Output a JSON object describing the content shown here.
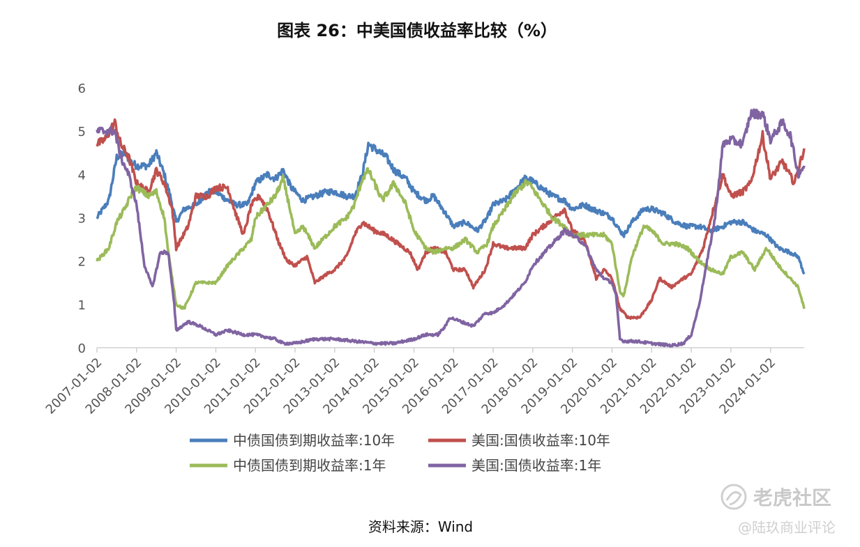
{
  "title": "图表 26：中美国债收益率比较（%）",
  "source": "资料来源：Wind",
  "watermark": {
    "main": "老虎社区",
    "sub": "@陆玖商业评论"
  },
  "colors": {
    "cn10": "#4a7ebb",
    "us10": "#c0504d",
    "cn1": "#9bbb59",
    "us1": "#8064a2"
  },
  "chart_data": {
    "type": "line",
    "title": "图表 26：中美国债收益率比较（%）",
    "ylim": [
      0,
      6
    ],
    "yticks": [
      "0",
      "1",
      "2",
      "3",
      "4",
      "5",
      "6"
    ],
    "xlim": [
      2007.0,
      2024.85
    ],
    "xticks": [
      "2007-01-02",
      "2008-01-02",
      "2009-01-02",
      "2010-01-02",
      "2011-01-02",
      "2012-01-02",
      "2013-01-02",
      "2014-01-02",
      "2015-01-02",
      "2016-01-02",
      "2017-01-02",
      "2018-01-02",
      "2019-01-02",
      "2020-01-02",
      "2021-01-02",
      "2022-01-02",
      "2023-01-02",
      "2024-01-02"
    ],
    "grid": false,
    "legend_position": "bottom",
    "series": [
      {
        "key": "cn10",
        "name": "中债国债到期收益率:10年",
        "x": [
          2007.0,
          2007.3,
          2007.5,
          2007.7,
          2007.85,
          2008.0,
          2008.3,
          2008.5,
          2008.7,
          2008.85,
          2009.0,
          2009.2,
          2009.5,
          2009.8,
          2010.0,
          2010.3,
          2010.5,
          2010.8,
          2011.0,
          2011.3,
          2011.5,
          2011.7,
          2011.9,
          2012.2,
          2012.5,
          2012.8,
          2013.0,
          2013.3,
          2013.5,
          2013.7,
          2013.85,
          2014.0,
          2014.3,
          2014.5,
          2014.8,
          2015.0,
          2015.3,
          2015.5,
          2015.8,
          2016.0,
          2016.3,
          2016.6,
          2016.85,
          2017.0,
          2017.3,
          2017.5,
          2017.8,
          2017.9,
          2018.2,
          2018.5,
          2018.8,
          2019.0,
          2019.3,
          2019.5,
          2019.8,
          2020.0,
          2020.2,
          2020.3,
          2020.5,
          2020.8,
          2021.0,
          2021.3,
          2021.6,
          2021.9,
          2022.2,
          2022.5,
          2022.8,
          2023.0,
          2023.3,
          2023.6,
          2023.9,
          2024.2,
          2024.5,
          2024.7,
          2024.85
        ],
        "y": [
          3.0,
          3.4,
          4.4,
          4.5,
          4.3,
          4.2,
          4.2,
          4.5,
          4.0,
          3.5,
          2.9,
          3.2,
          3.3,
          3.6,
          3.6,
          3.4,
          3.3,
          3.3,
          3.8,
          4.0,
          3.9,
          4.1,
          3.7,
          3.4,
          3.5,
          3.6,
          3.6,
          3.5,
          3.5,
          4.0,
          4.7,
          4.6,
          4.4,
          4.1,
          3.9,
          3.6,
          3.4,
          3.5,
          3.1,
          2.8,
          2.9,
          2.7,
          3.0,
          3.3,
          3.4,
          3.6,
          3.9,
          3.9,
          3.7,
          3.5,
          3.4,
          3.2,
          3.3,
          3.2,
          3.1,
          3.0,
          2.7,
          2.6,
          2.9,
          3.2,
          3.2,
          3.1,
          2.9,
          2.8,
          2.8,
          2.7,
          2.8,
          2.9,
          2.9,
          2.7,
          2.6,
          2.3,
          2.2,
          2.1,
          1.7
        ]
      },
      {
        "key": "us10",
        "name": "美国:国债收益率:10年",
        "x": [
          2007.0,
          2007.2,
          2007.45,
          2007.6,
          2007.8,
          2008.0,
          2008.3,
          2008.5,
          2008.7,
          2008.9,
          2009.0,
          2009.3,
          2009.5,
          2009.8,
          2010.0,
          2010.3,
          2010.5,
          2010.7,
          2010.9,
          2011.1,
          2011.3,
          2011.6,
          2011.8,
          2012.0,
          2012.3,
          2012.5,
          2012.8,
          2013.0,
          2013.3,
          2013.5,
          2013.7,
          2013.85,
          2014.0,
          2014.3,
          2014.6,
          2014.9,
          2015.1,
          2015.3,
          2015.5,
          2015.8,
          2016.0,
          2016.3,
          2016.5,
          2016.8,
          2017.0,
          2017.3,
          2017.6,
          2017.8,
          2018.0,
          2018.4,
          2018.8,
          2019.0,
          2019.3,
          2019.6,
          2019.8,
          2020.0,
          2020.2,
          2020.4,
          2020.7,
          2021.0,
          2021.2,
          2021.5,
          2021.8,
          2022.0,
          2022.3,
          2022.5,
          2022.8,
          2023.0,
          2023.3,
          2023.5,
          2023.8,
          2024.0,
          2024.3,
          2024.6,
          2024.85
        ],
        "y": [
          4.7,
          4.8,
          5.2,
          4.7,
          4.4,
          3.8,
          3.6,
          4.1,
          3.8,
          3.2,
          2.3,
          2.8,
          3.5,
          3.5,
          3.7,
          3.7,
          3.1,
          2.6,
          3.3,
          3.5,
          3.2,
          2.4,
          2.0,
          1.9,
          2.1,
          1.5,
          1.7,
          1.8,
          2.1,
          2.6,
          2.9,
          2.8,
          2.7,
          2.6,
          2.4,
          2.2,
          1.8,
          2.2,
          2.3,
          2.2,
          1.8,
          1.8,
          1.4,
          1.8,
          2.4,
          2.3,
          2.3,
          2.3,
          2.6,
          2.9,
          3.2,
          2.7,
          2.5,
          1.6,
          1.8,
          1.6,
          0.9,
          0.7,
          0.7,
          1.1,
          1.6,
          1.4,
          1.6,
          1.7,
          2.3,
          3.0,
          4.0,
          3.5,
          3.6,
          3.8,
          4.9,
          3.9,
          4.3,
          3.8,
          4.6
        ]
      },
      {
        "key": "cn1",
        "name": "中债国债到期收益率:1年",
        "x": [
          2007.0,
          2007.3,
          2007.5,
          2007.7,
          2007.85,
          2008.0,
          2008.3,
          2008.5,
          2008.7,
          2008.8,
          2009.0,
          2009.2,
          2009.5,
          2009.8,
          2010.0,
          2010.3,
          2010.6,
          2010.9,
          2011.0,
          2011.3,
          2011.5,
          2011.7,
          2011.85,
          2012.0,
          2012.2,
          2012.5,
          2012.8,
          2013.0,
          2013.3,
          2013.5,
          2013.7,
          2013.85,
          2014.0,
          2014.2,
          2014.5,
          2014.8,
          2015.0,
          2015.3,
          2015.5,
          2015.8,
          2016.0,
          2016.3,
          2016.6,
          2016.85,
          2017.0,
          2017.3,
          2017.5,
          2017.8,
          2017.9,
          2018.2,
          2018.5,
          2018.8,
          2019.0,
          2019.3,
          2019.5,
          2019.8,
          2020.0,
          2020.2,
          2020.3,
          2020.5,
          2020.8,
          2021.0,
          2021.3,
          2021.6,
          2021.9,
          2022.2,
          2022.5,
          2022.8,
          2023.0,
          2023.3,
          2023.6,
          2023.9,
          2024.2,
          2024.5,
          2024.7,
          2024.85
        ],
        "y": [
          2.0,
          2.3,
          2.9,
          3.2,
          3.5,
          3.7,
          3.5,
          3.6,
          3.0,
          2.2,
          1.0,
          0.9,
          1.5,
          1.5,
          1.5,
          1.9,
          2.2,
          2.5,
          3.0,
          3.3,
          3.5,
          3.9,
          3.3,
          2.6,
          2.8,
          2.3,
          2.6,
          2.8,
          3.0,
          3.3,
          3.9,
          4.1,
          3.8,
          3.4,
          3.8,
          3.3,
          2.7,
          2.3,
          2.2,
          2.3,
          2.3,
          2.5,
          2.2,
          2.4,
          2.8,
          3.2,
          3.5,
          3.8,
          3.8,
          3.4,
          3.0,
          2.8,
          2.6,
          2.6,
          2.6,
          2.6,
          2.4,
          1.3,
          1.2,
          2.1,
          2.8,
          2.7,
          2.4,
          2.4,
          2.3,
          2.0,
          1.8,
          1.7,
          2.1,
          2.2,
          1.8,
          2.3,
          1.9,
          1.6,
          1.4,
          0.9
        ]
      },
      {
        "key": "us1",
        "name": "美国:国债收益率:1年",
        "x": [
          2007.0,
          2007.2,
          2007.45,
          2007.6,
          2007.8,
          2008.0,
          2008.2,
          2008.4,
          2008.6,
          2008.8,
          2008.95,
          2009.0,
          2009.3,
          2009.6,
          2010.0,
          2010.3,
          2010.7,
          2011.0,
          2011.5,
          2011.7,
          2012.0,
          2012.5,
          2013.0,
          2013.5,
          2014.0,
          2014.5,
          2015.0,
          2015.3,
          2015.6,
          2015.8,
          2015.9,
          2016.2,
          2016.5,
          2016.8,
          2017.0,
          2017.3,
          2017.6,
          2017.8,
          2018.0,
          2018.4,
          2018.8,
          2019.0,
          2019.3,
          2019.6,
          2019.8,
          2020.0,
          2020.1,
          2020.2,
          2020.3,
          2020.6,
          2021.0,
          2021.5,
          2021.8,
          2022.0,
          2022.2,
          2022.4,
          2022.6,
          2022.8,
          2023.0,
          2023.3,
          2023.5,
          2023.8,
          2024.0,
          2024.3,
          2024.5,
          2024.7,
          2024.85
        ],
        "y": [
          5.0,
          5.0,
          5.0,
          4.4,
          4.0,
          3.3,
          1.9,
          1.4,
          2.2,
          2.2,
          1.0,
          0.4,
          0.6,
          0.5,
          0.3,
          0.4,
          0.3,
          0.3,
          0.2,
          0.1,
          0.1,
          0.2,
          0.2,
          0.15,
          0.1,
          0.1,
          0.2,
          0.3,
          0.3,
          0.5,
          0.7,
          0.6,
          0.5,
          0.8,
          0.8,
          1.0,
          1.3,
          1.5,
          1.9,
          2.3,
          2.7,
          2.6,
          2.4,
          1.8,
          1.6,
          1.5,
          1.2,
          0.2,
          0.15,
          0.15,
          0.1,
          0.05,
          0.1,
          0.3,
          1.0,
          2.0,
          3.0,
          4.7,
          4.8,
          4.7,
          5.4,
          5.4,
          4.8,
          5.2,
          4.9,
          4.0,
          4.2
        ]
      }
    ]
  }
}
